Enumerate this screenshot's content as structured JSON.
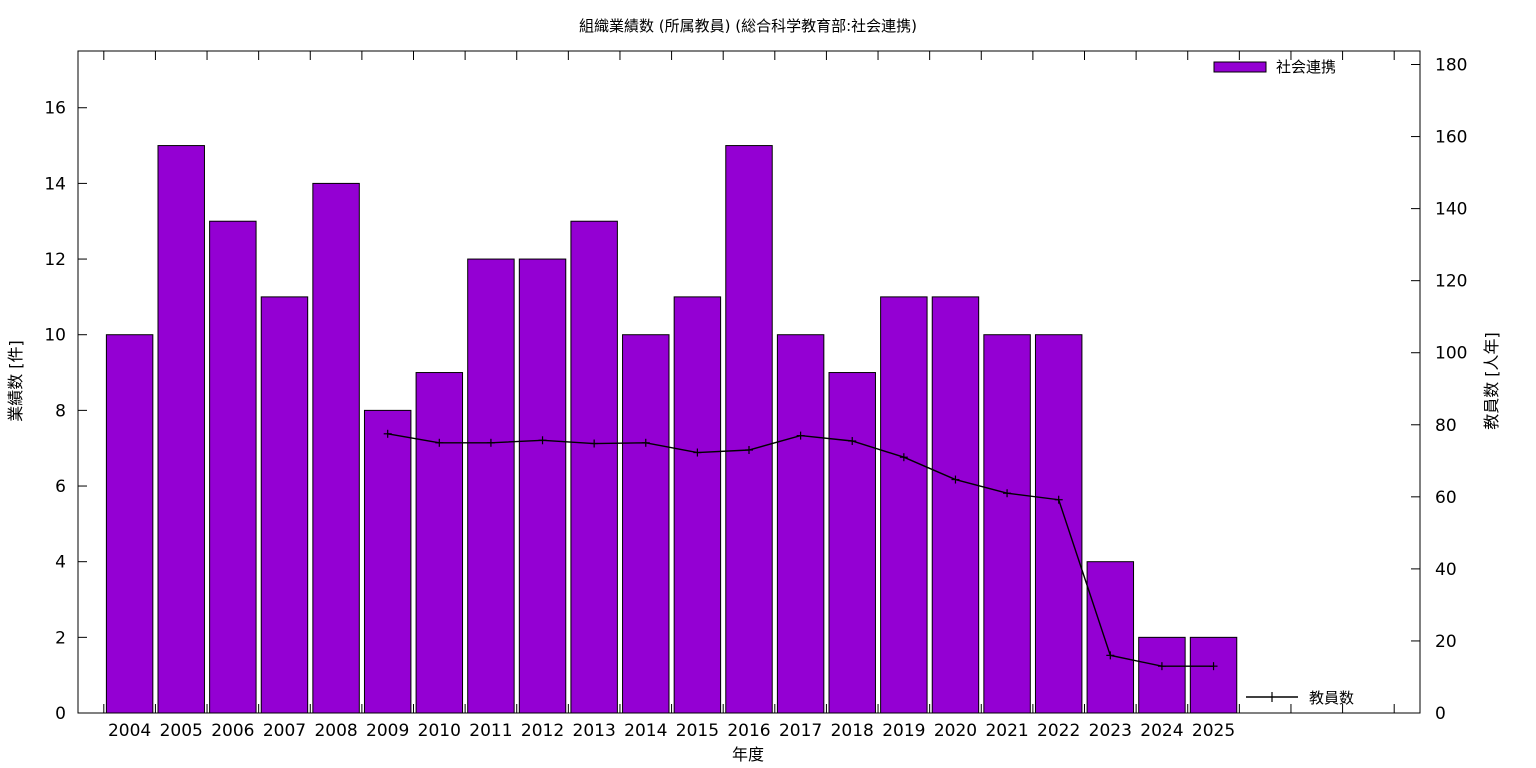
{
  "chart_data": {
    "type": "bar",
    "title": "組織業績数 (所属教員) (総合科学教育部:社会連携)",
    "xlabel": "年度",
    "ylabel": "業績数 [件]",
    "y2label": "教員数 [人年]",
    "ylim": [
      0,
      17.5
    ],
    "y2lim": [
      0,
      183.75
    ],
    "yticks": [
      0,
      2,
      4,
      6,
      8,
      10,
      12,
      14,
      16
    ],
    "y2ticks": [
      0,
      20,
      40,
      60,
      80,
      100,
      120,
      140,
      160,
      180
    ],
    "categories": [
      "2004",
      "2005",
      "2006",
      "2007",
      "2008",
      "2009",
      "2010",
      "2011",
      "2012",
      "2013",
      "2014",
      "2015",
      "2016",
      "2017",
      "2018",
      "2019",
      "2020",
      "2021",
      "2022",
      "2023",
      "2024",
      "2025"
    ],
    "series": [
      {
        "name": "社会連携",
        "kind": "bar",
        "axis": "left",
        "color": "#9400d3",
        "values": [
          10,
          15,
          13,
          11,
          14,
          8,
          9,
          12,
          12,
          13,
          10,
          11,
          15,
          10,
          9,
          11,
          11,
          10,
          10,
          4,
          2,
          2
        ]
      },
      {
        "name": "教員数",
        "kind": "line",
        "axis": "right",
        "color": "#000000",
        "values": [
          null,
          null,
          null,
          null,
          null,
          77.5,
          75,
          75,
          75.7,
          74.8,
          75,
          72.3,
          73,
          77,
          75.5,
          71,
          64.8,
          61,
          59.2,
          16,
          13,
          13
        ]
      }
    ],
    "grid": false,
    "legend": "top-right"
  }
}
